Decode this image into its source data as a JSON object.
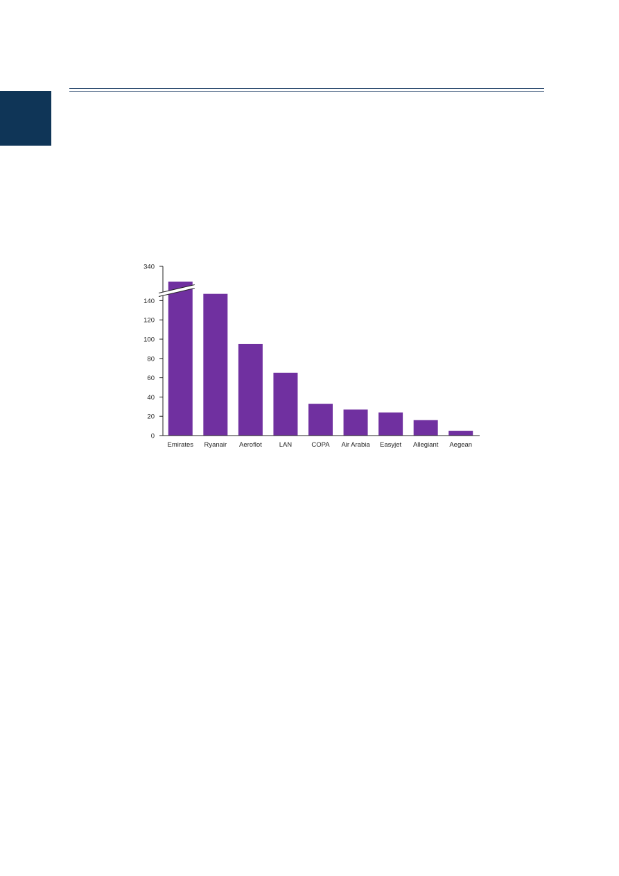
{
  "chart_data": {
    "type": "bar",
    "title": "",
    "xlabel": "",
    "ylabel": "",
    "categories": [
      "Emirates",
      "Ryanair",
      "Aeroflot",
      "LAN",
      "COPA",
      "Air Arabia",
      "Easyjet",
      "Allegiant",
      "Aegean"
    ],
    "values": [
      340,
      147,
      95,
      65,
      33,
      27,
      24,
      16,
      5
    ],
    "ylim": [
      0,
      340
    ],
    "axis_break": true,
    "yticks": [
      0,
      20,
      40,
      60,
      80,
      100,
      120,
      140,
      340
    ],
    "grid": false,
    "bar_color": "#7030a0"
  },
  "colors": {
    "side_tab": "#0f3557",
    "rules": "#1f3f66"
  }
}
